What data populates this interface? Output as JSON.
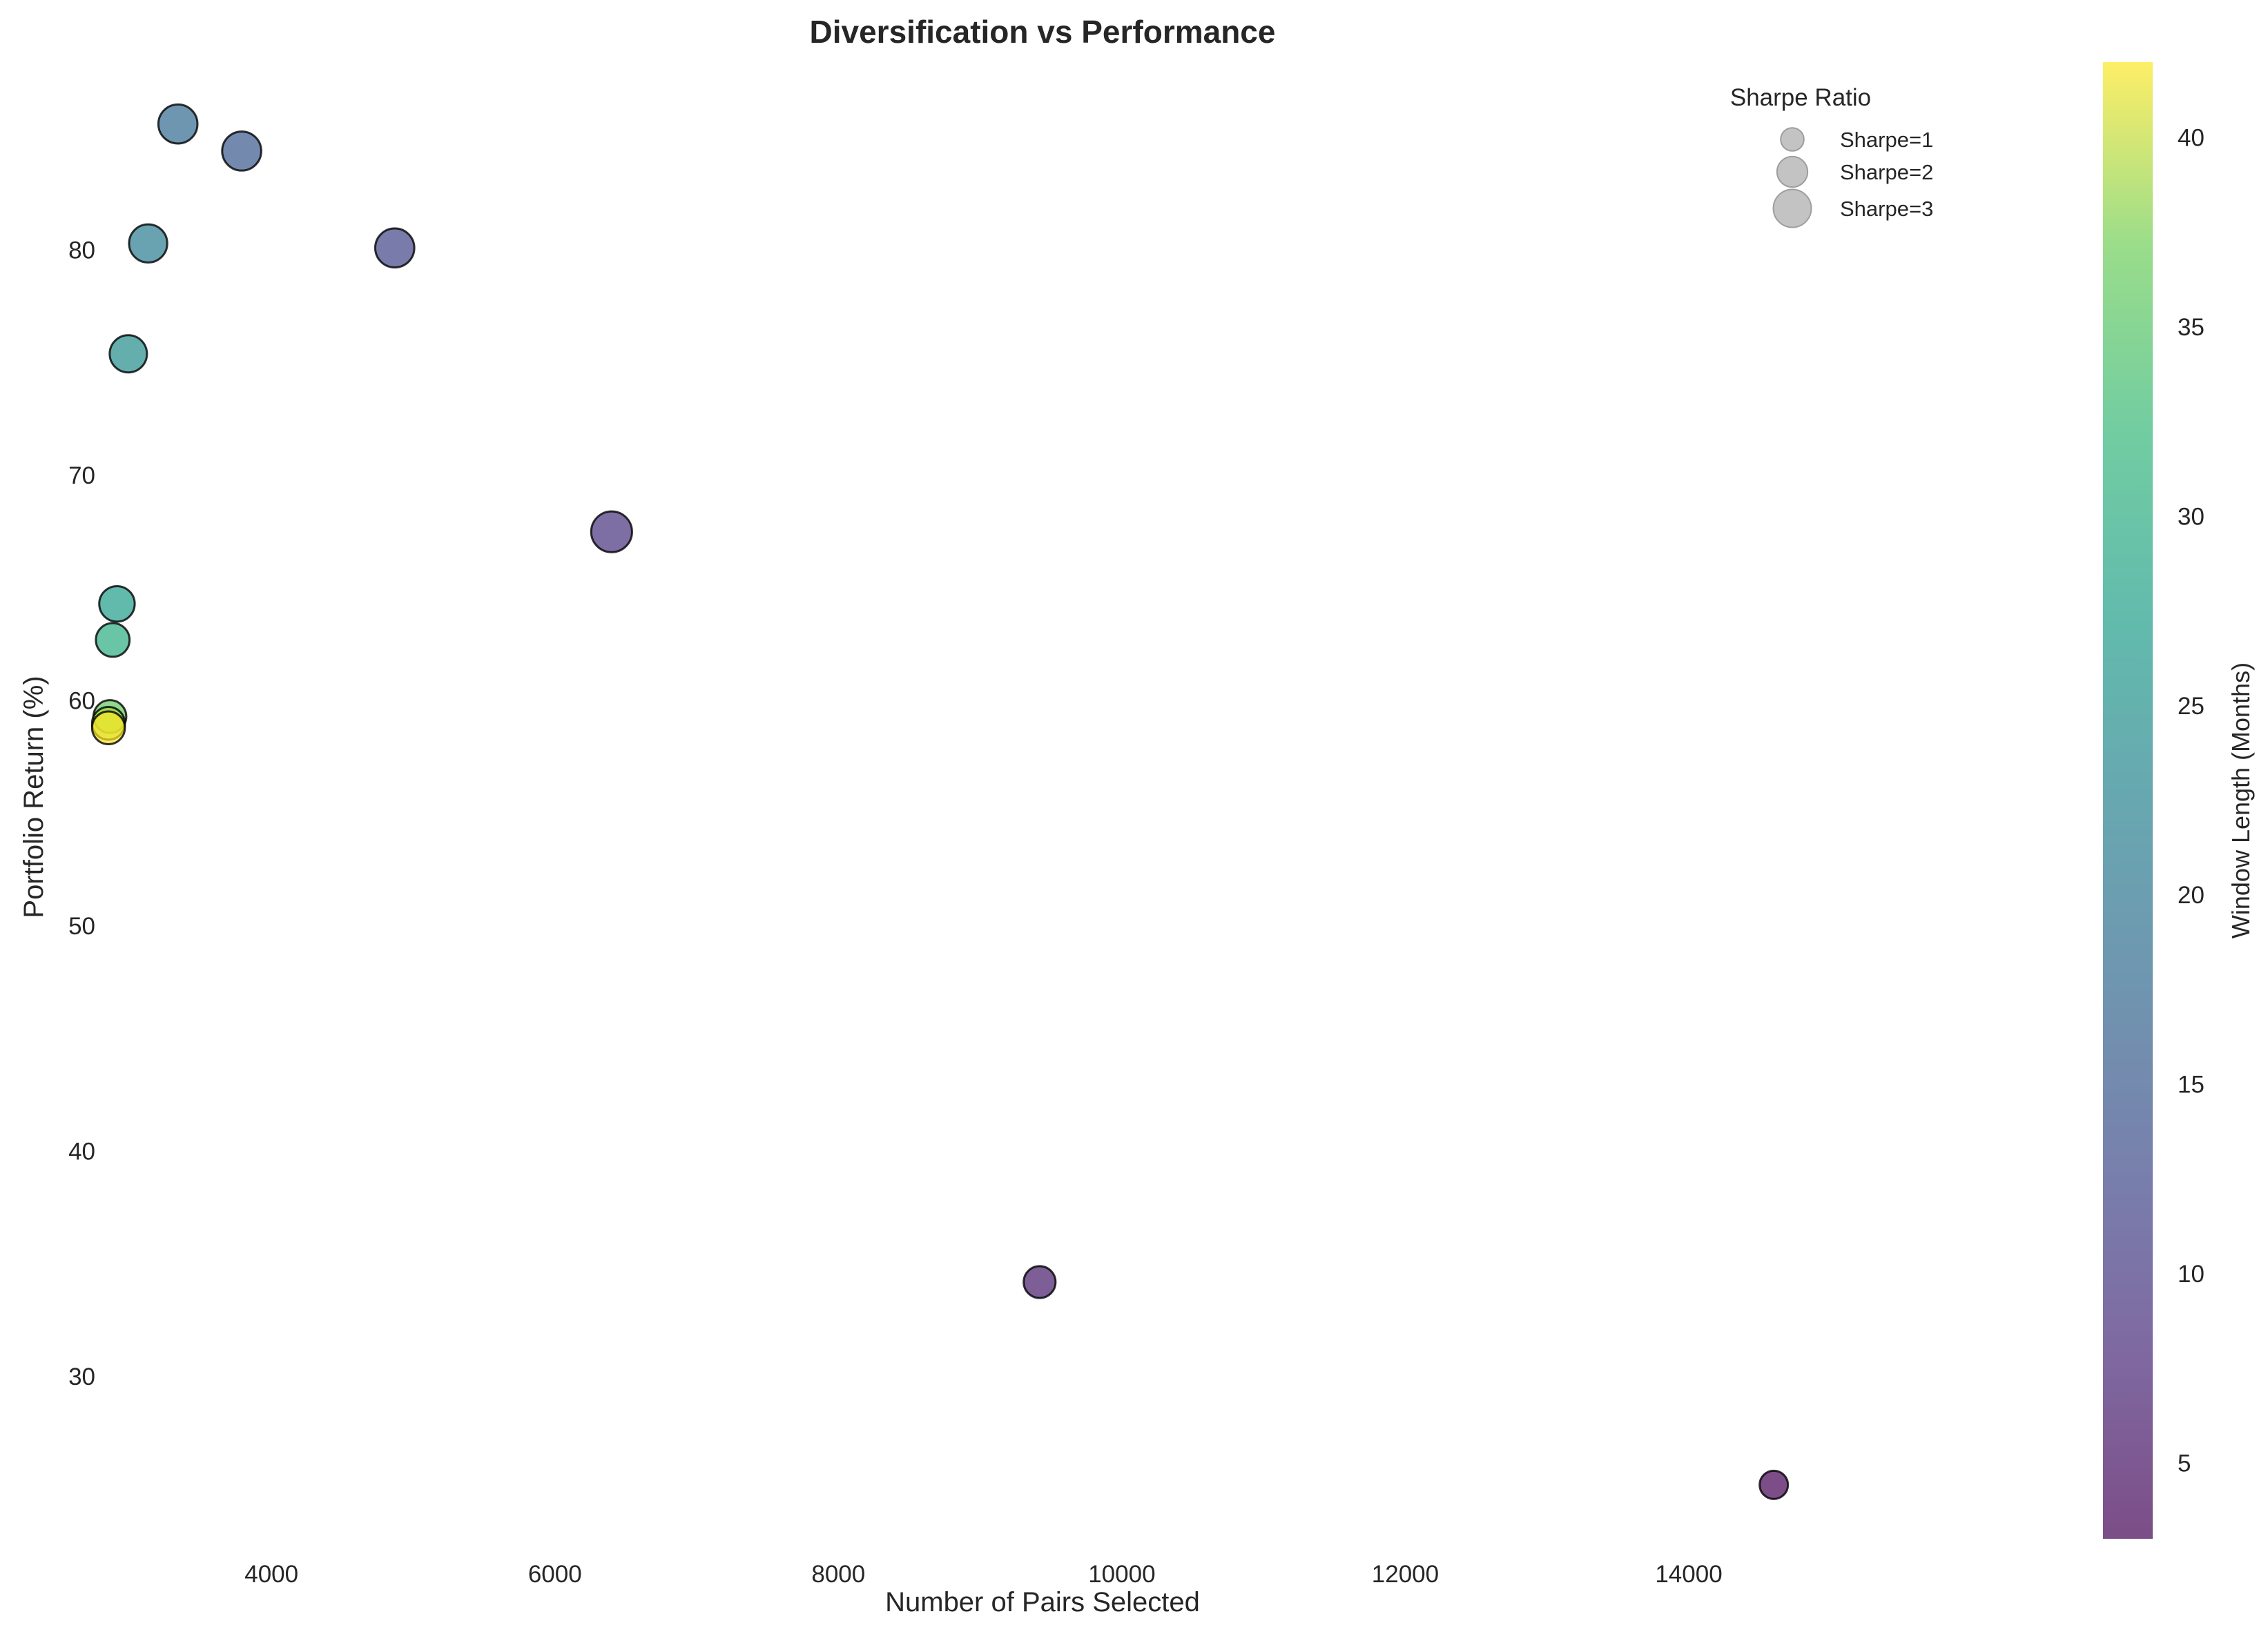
{
  "chart_data": {
    "type": "scatter",
    "title": "Diversification vs Performance",
    "xlabel": "Number of Pairs Selected",
    "ylabel": "Portfolio Return (%)",
    "xlim": [
      2450,
      16650
    ],
    "ylim": [
      22.5,
      88.5
    ],
    "xticks": [
      4000,
      6000,
      8000,
      10000,
      12000,
      14000
    ],
    "yticks": [
      30,
      40,
      50,
      60,
      70,
      80
    ],
    "grid": false,
    "points": [
      {
        "x": 14600,
        "y": 25.2,
        "window": 3,
        "sharpe": 1.0
      },
      {
        "x": 9420,
        "y": 34.2,
        "window": 6,
        "sharpe": 1.4
      },
      {
        "x": 6400,
        "y": 67.5,
        "window": 9,
        "sharpe": 2.4
      },
      {
        "x": 4870,
        "y": 80.1,
        "window": 12,
        "sharpe": 2.2
      },
      {
        "x": 3790,
        "y": 84.4,
        "window": 15,
        "sharpe": 2.2
      },
      {
        "x": 3340,
        "y": 85.6,
        "window": 18,
        "sharpe": 2.2
      },
      {
        "x": 3130,
        "y": 80.3,
        "window": 21,
        "sharpe": 2.1
      },
      {
        "x": 2990,
        "y": 75.4,
        "window": 24,
        "sharpe": 2.0
      },
      {
        "x": 2910,
        "y": 64.3,
        "window": 27,
        "sharpe": 1.8
      },
      {
        "x": 2880,
        "y": 62.7,
        "window": 30,
        "sharpe": 1.6
      },
      {
        "x": 2860,
        "y": 59.3,
        "window": 36,
        "sharpe": 1.5
      },
      {
        "x": 2850,
        "y": 59.0,
        "window": 39,
        "sharpe": 1.5
      },
      {
        "x": 2850,
        "y": 58.8,
        "window": 42,
        "sharpe": 1.5
      }
    ],
    "size_legend": {
      "title": "Sharpe Ratio",
      "entries": [
        {
          "label": "Sharpe=1",
          "sharpe": 1
        },
        {
          "label": "Sharpe=2",
          "sharpe": 2
        },
        {
          "label": "Sharpe=3",
          "sharpe": 3
        }
      ],
      "placement": "top-right",
      "color": "#bdbdbd"
    },
    "colorbar": {
      "label": "Window Length (Months)",
      "range": [
        3,
        42
      ],
      "ticks": [
        5,
        10,
        15,
        20,
        25,
        30,
        35,
        40
      ],
      "colormap": "viridis",
      "alpha": 0.7
    }
  }
}
